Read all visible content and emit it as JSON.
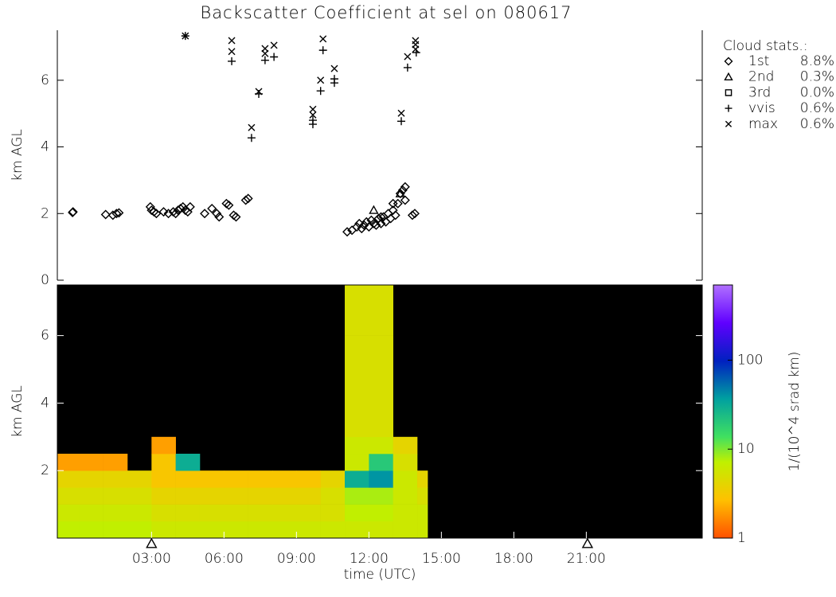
{
  "chart_data": [
    {
      "type": "scatter",
      "title": "Backscatter Coefficient at sel on 080617",
      "ylabel": "km AGL",
      "xlim": [
        -0.9,
        25.8
      ],
      "ylim": [
        0,
        7.5
      ],
      "yticks": [
        0,
        2,
        4,
        6
      ],
      "legend": "right",
      "legend_title": "Cloud stats.:",
      "stats": {
        "values": [
          8.8,
          0.3,
          0.0,
          0.6,
          0.6
        ],
        "value_labels": [
          "8.8%",
          "0.3%",
          "0.0%",
          "0.6%",
          "0.6%"
        ]
      },
      "series": [
        {
          "name": "1st",
          "marker": "diamond",
          "color": "#000000",
          "x": [
            -0.27,
            -0.25,
            1.1,
            1.4,
            1.55,
            1.65,
            2.95,
            3.0,
            3.1,
            3.2,
            3.5,
            3.7,
            3.9,
            4.0,
            4.1,
            4.2,
            4.3,
            4.4,
            4.5,
            4.6,
            5.2,
            5.5,
            5.7,
            5.8,
            6.1,
            6.2,
            6.4,
            6.5,
            6.9,
            7.0,
            11.1,
            11.3,
            11.5,
            11.6,
            11.7,
            11.8,
            11.9,
            12.0,
            12.1,
            12.2,
            12.3,
            12.4,
            12.5,
            12.6,
            12.7,
            12.8,
            12.9,
            13.0,
            13.1,
            13.2,
            13.3,
            13.4,
            13.5,
            13.5,
            13.8,
            13.9,
            13.0,
            12.5
          ],
          "values": [
            2.03,
            2.05,
            1.97,
            1.95,
            2.0,
            2.02,
            2.2,
            2.1,
            2.05,
            2.0,
            2.05,
            2.0,
            2.05,
            2.0,
            2.1,
            2.15,
            2.2,
            2.1,
            2.05,
            2.2,
            2.0,
            2.15,
            2.0,
            1.9,
            2.3,
            2.25,
            1.95,
            1.9,
            2.4,
            2.45,
            1.45,
            1.5,
            1.6,
            1.7,
            1.55,
            1.65,
            1.75,
            1.6,
            1.8,
            1.7,
            1.65,
            1.85,
            1.7,
            1.9,
            1.75,
            2.0,
            1.85,
            2.1,
            1.95,
            2.3,
            2.6,
            2.7,
            2.8,
            2.4,
            1.95,
            2.0,
            2.3,
            1.9
          ]
        },
        {
          "name": "2nd",
          "marker": "triangle",
          "color": "#000000",
          "x": [
            12.2,
            13.3
          ],
          "values": [
            2.1,
            2.6
          ]
        },
        {
          "name": "3rd",
          "marker": "square",
          "color": "#000000",
          "x": [],
          "values": []
        },
        {
          "name": "vvis",
          "marker": "plus",
          "color": "#000000",
          "x": [
            4.4,
            6.32,
            7.14,
            7.44,
            7.7,
            8.07,
            9.68,
            9.68,
            10.0,
            10.1,
            10.57,
            10.57,
            13.34,
            13.6,
            13.96
          ],
          "values": [
            7.33,
            6.57,
            4.27,
            5.59,
            6.6,
            6.7,
            4.68,
            4.8,
            5.68,
            6.9,
            6.04,
            5.92,
            4.77,
            6.38,
            6.83
          ]
        },
        {
          "name": "max",
          "marker": "cross",
          "color": "#000000",
          "x": [
            4.4,
            6.32,
            6.32,
            7.14,
            7.44,
            7.7,
            7.7,
            8.07,
            9.68,
            9.68,
            10.0,
            10.1,
            10.57,
            13.34,
            13.6,
            13.93,
            13.93,
            13.93
          ],
          "values": [
            7.33,
            7.19,
            6.86,
            4.58,
            5.66,
            6.95,
            6.8,
            7.05,
            5.13,
            4.96,
            6.0,
            7.24,
            6.35,
            5.01,
            6.71,
            7.19,
            7.07,
            6.93
          ]
        }
      ]
    },
    {
      "type": "heatmap",
      "xlabel": "time (UTC)",
      "ylabel": "km AGL",
      "xlim": [
        -0.9,
        25.8
      ],
      "ylim": [
        0,
        7.5
      ],
      "xticks": [
        {
          "value": 3,
          "label": "03:00"
        },
        {
          "value": 6,
          "label": "06:00"
        },
        {
          "value": 9,
          "label": "09:00"
        },
        {
          "value": 12,
          "label": "12:00"
        },
        {
          "value": 15,
          "label": "15:00"
        },
        {
          "value": 18,
          "label": "18:00"
        },
        {
          "value": 21,
          "label": "21:00"
        }
      ],
      "yticks": [
        2,
        4,
        6
      ],
      "no_data_color": "#000000",
      "x_edges": [
        -0.9,
        0,
        1,
        2,
        3,
        4,
        5,
        6,
        7,
        8,
        9,
        10,
        11,
        12,
        13,
        14,
        14.43
      ],
      "y_edges": [
        0,
        0.5,
        1,
        1.5,
        2,
        2.5,
        3,
        4,
        5,
        6,
        7.5
      ],
      "values": [
        [
          7,
          7,
          7,
          7,
          6,
          6,
          6,
          6,
          6,
          6,
          6,
          6,
          6,
          6,
          6,
          6
        ],
        [
          6,
          6,
          6,
          6,
          5,
          5,
          5,
          5,
          5,
          5,
          5,
          5,
          7,
          7,
          6,
          6
        ],
        [
          5,
          5,
          5,
          5,
          4,
          4,
          4,
          4,
          4,
          4,
          4,
          5,
          8,
          8,
          6,
          5
        ],
        [
          4,
          4,
          4,
          4,
          3,
          3,
          3,
          3,
          3,
          3,
          3,
          4,
          30,
          40,
          6,
          4
        ],
        [
          2,
          2,
          2,
          null,
          3,
          30,
          null,
          null,
          null,
          null,
          null,
          null,
          6,
          20,
          5,
          null
        ],
        [
          null,
          null,
          null,
          null,
          2,
          null,
          null,
          null,
          null,
          null,
          null,
          null,
          6,
          6,
          4,
          null
        ],
        [
          null,
          null,
          null,
          null,
          null,
          null,
          null,
          null,
          null,
          null,
          null,
          null,
          5,
          5,
          null,
          null
        ],
        [
          null,
          null,
          null,
          null,
          null,
          null,
          null,
          null,
          null,
          null,
          null,
          null,
          5,
          5,
          null,
          null
        ],
        [
          null,
          null,
          null,
          null,
          null,
          null,
          null,
          null,
          null,
          null,
          null,
          null,
          5,
          5,
          null,
          null
        ],
        [
          null,
          null,
          null,
          null,
          null,
          null,
          null,
          null,
          null,
          null,
          null,
          null,
          5,
          5,
          null,
          null
        ]
      ],
      "markers": {
        "symbol": "triangle",
        "x": [
          3.0,
          21.05
        ]
      },
      "colorbar": {
        "label": "1/(10^4 srad km)",
        "scale": "log",
        "lim": [
          1,
          700
        ],
        "ticks": [
          1,
          10,
          100
        ]
      }
    }
  ]
}
